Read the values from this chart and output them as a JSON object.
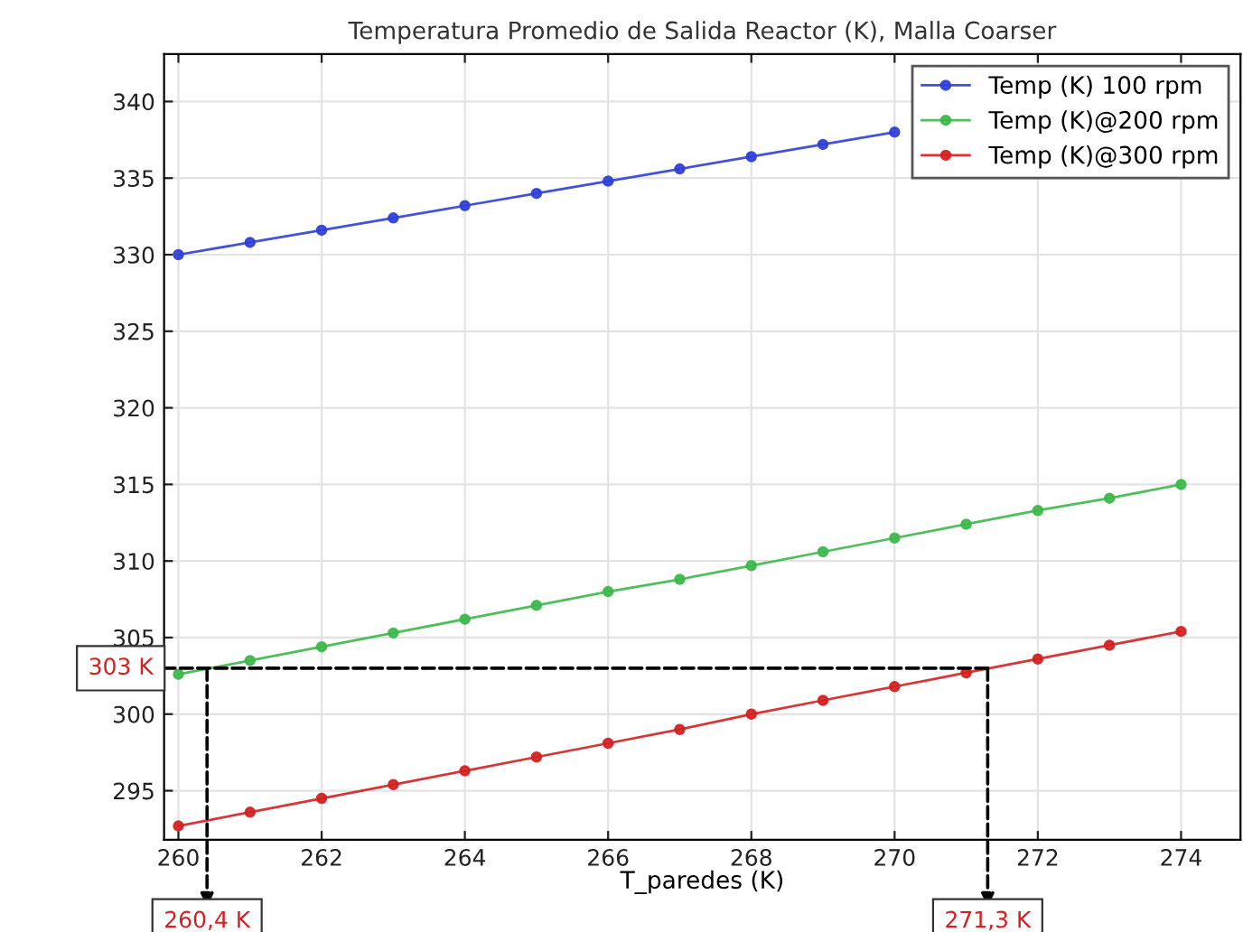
{
  "chart_data": {
    "type": "line",
    "title": "Temperatura Promedio de Salida Reactor (K), Malla Coarser",
    "xlabel": "T_paredes (K)",
    "x": [
      260,
      261,
      262,
      263,
      264,
      265,
      266,
      267,
      268,
      269,
      270,
      271,
      272,
      273,
      274
    ],
    "series": [
      {
        "name": "Temp (K) 100 rpm",
        "color": "#2f3fd6",
        "values": [
          330.0,
          330.8,
          331.6,
          332.4,
          333.2,
          334.0,
          334.8,
          335.6,
          336.4,
          337.2,
          338.0,
          null,
          null,
          null,
          null
        ]
      },
      {
        "name": "Temp (K)@200 rpm",
        "color": "#3cb84a",
        "values": [
          302.6,
          303.5,
          304.4,
          305.3,
          306.2,
          307.1,
          308.0,
          308.8,
          309.7,
          310.6,
          311.5,
          312.4,
          313.3,
          314.1,
          315.0
        ]
      },
      {
        "name": "Temp (K)@300 rpm",
        "color": "#d42020",
        "values": [
          292.7,
          293.6,
          294.5,
          295.4,
          296.3,
          297.2,
          298.1,
          299.0,
          300.0,
          300.9,
          301.8,
          302.7,
          303.6,
          304.5,
          305.4
        ]
      }
    ],
    "xlim": [
      259.8,
      274.83
    ],
    "ylim": [
      291.8,
      343.1
    ],
    "xticks": [
      260,
      262,
      264,
      266,
      268,
      270,
      272,
      274
    ],
    "yticks": [
      295,
      300,
      305,
      310,
      315,
      320,
      325,
      330,
      335,
      340
    ],
    "annotations": [
      "303 K",
      {
        "text": "260,4 K",
        "x": 260.4,
        "y": 303
      },
      {
        "text": "271,3 K",
        "x": 271.3,
        "y": 303
      }
    ],
    "grid": true,
    "legend": "top right",
    "marker": "circle",
    "line_style": "solid"
  }
}
